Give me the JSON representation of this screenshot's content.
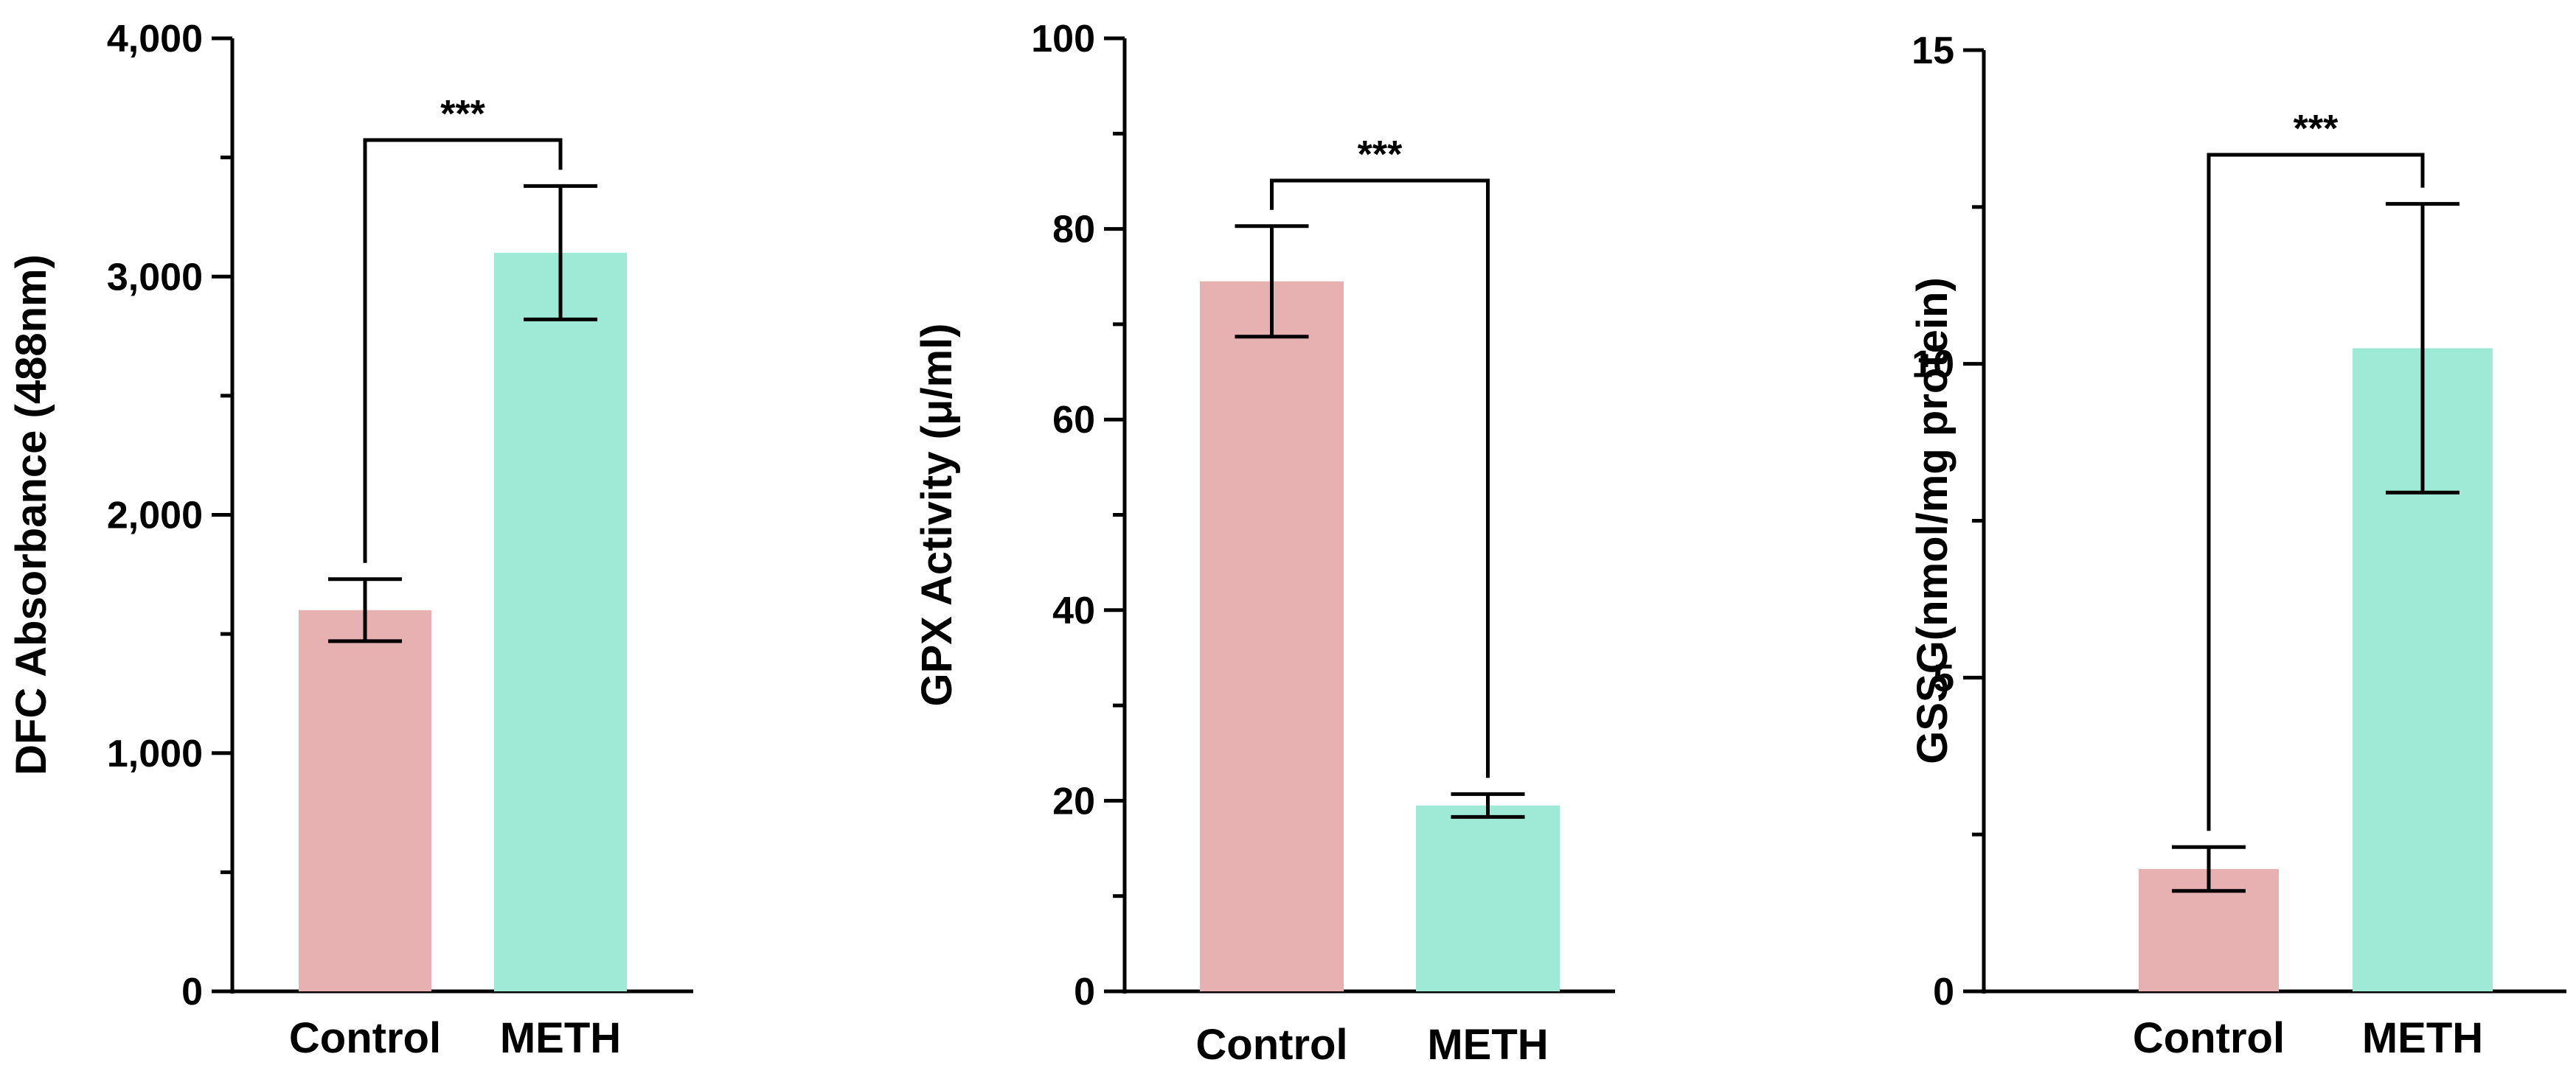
{
  "chart_data": [
    {
      "type": "bar",
      "ylabel": "DFC Absorbance (488nm)",
      "categories": [
        "Control",
        "METH"
      ],
      "values": [
        1600,
        3100
      ],
      "errors": [
        130,
        280
      ],
      "colors": [
        "#e6b1b0",
        "#9eead6"
      ],
      "ylim": [
        0,
        4000
      ],
      "yticks": [
        0,
        1000,
        2000,
        3000,
        4000
      ],
      "ytick_labels": [
        "0",
        "1,000",
        "2,000",
        "3,000",
        "4,000"
      ],
      "significance": {
        "pair": [
          0,
          1
        ],
        "label": "***"
      }
    },
    {
      "type": "bar",
      "ylabel": "GPX Activity (μ/ml)",
      "categories": [
        "Control",
        "METH"
      ],
      "values": [
        74.5,
        19.5
      ],
      "errors": [
        5.8,
        1.2
      ],
      "colors": [
        "#e6b1b0",
        "#9eead6"
      ],
      "ylim": [
        0,
        100
      ],
      "yticks": [
        0,
        20,
        40,
        60,
        80,
        100
      ],
      "ytick_labels": [
        "0",
        "20",
        "40",
        "60",
        "80",
        "100"
      ],
      "significance": {
        "pair": [
          0,
          1
        ],
        "label": "***"
      }
    },
    {
      "type": "bar",
      "ylabel": "GSSG(nmol/mg protein)",
      "categories": [
        "Control",
        "METH"
      ],
      "values": [
        1.95,
        10.25
      ],
      "errors": [
        0.35,
        2.3
      ],
      "colors": [
        "#e6b1b0",
        "#9eead6"
      ],
      "ylim": [
        0,
        15
      ],
      "yticks": [
        0,
        5,
        10,
        15
      ],
      "ytick_labels": [
        "0",
        "5",
        "10",
        "15"
      ],
      "significance": {
        "pair": [
          0,
          1
        ],
        "label": "***"
      }
    }
  ]
}
